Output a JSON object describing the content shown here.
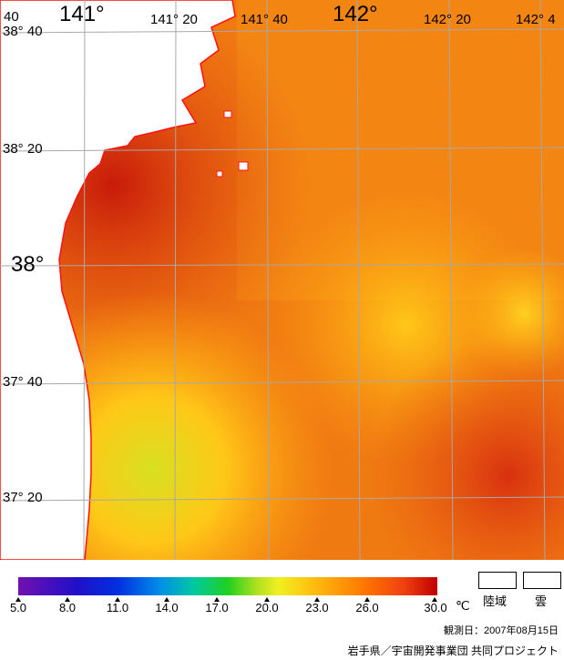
{
  "map": {
    "lat_labels": [
      "38° 40",
      "38° 20",
      "38°",
      "37° 40",
      "37° 20"
    ],
    "lon_labels": [
      "40",
      "141°",
      "141° 20",
      "141° 40",
      "142°",
      "142° 20",
      "142° 4"
    ],
    "land_color": "#ffffff",
    "coast_color": "#ff1010",
    "grid_color": "#a0a0a0"
  },
  "colorbar": {
    "ticks": [
      "5.0",
      "8.0",
      "11.0",
      "14.0",
      "17.0",
      "20.0",
      "23.0",
      "26.0",
      "30.0"
    ],
    "unit": "℃",
    "colors": [
      "#7010b0",
      "#0030e0",
      "#00c8a0",
      "#20d020",
      "#f0f020",
      "#ffc010",
      "#ff7a00",
      "#c00000"
    ]
  },
  "legend": {
    "land_label": "陸域",
    "cloud_label": "雲"
  },
  "observation_date": "観測日：2007年08月15日",
  "credit": "岩手県／宇宙開発事業団 共同プロジェクト"
}
